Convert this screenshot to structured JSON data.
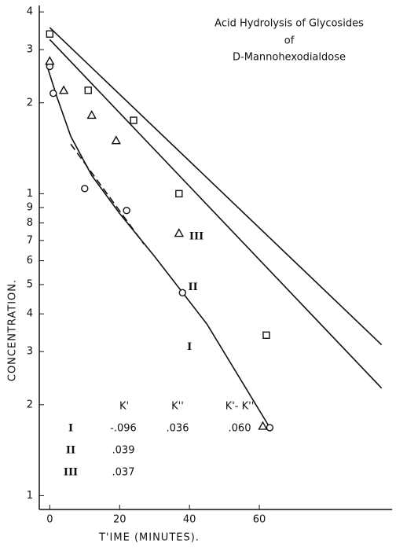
{
  "chart_data": {
    "type": "scatter",
    "title": [
      "Acid Hydrolysis of Glycosides",
      "of",
      "D-Mannohexodialdose"
    ],
    "ylabel": "CONCENTRATION.",
    "xlabel": "T'IME (MINUTES).",
    "log_y": true,
    "color": "#111111",
    "xlim": [
      -3,
      98
    ],
    "ylim": [
      0.09,
      4.2
    ],
    "xticks": [
      0,
      20,
      40,
      60
    ],
    "yticks": [
      4,
      3,
      2,
      1,
      {
        "value": 0.9,
        "label": "9"
      },
      {
        "value": 0.8,
        "label": "8"
      },
      {
        "value": 0.7,
        "label": "7"
      },
      {
        "value": 0.6,
        "label": "6"
      },
      {
        "value": 0.5,
        "label": "5"
      },
      {
        "value": 0.4,
        "label": "4"
      },
      {
        "value": 0.3,
        "label": "3"
      },
      {
        "value": 0.2,
        "label": "2"
      },
      {
        "value": 0.1,
        "label": "1"
      }
    ],
    "series": [
      {
        "name": "I",
        "marker": "circle",
        "x": [
          0,
          1,
          10,
          22,
          38,
          63
        ],
        "values": [
          2.64,
          2.15,
          1.04,
          0.88,
          0.47,
          0.168
        ]
      },
      {
        "name": "II",
        "marker": "triangle",
        "x": [
          0,
          4,
          12,
          19,
          37,
          61
        ],
        "values": [
          2.75,
          2.2,
          1.82,
          1.5,
          0.74,
          0.17
        ]
      },
      {
        "name": "III",
        "marker": "square",
        "x": [
          0,
          11,
          24,
          37,
          62
        ],
        "values": [
          3.38,
          2.2,
          1.75,
          1.0,
          0.34
        ]
      }
    ],
    "lines": [
      {
        "style": "solid",
        "x": [
          0,
          95
        ],
        "values": [
          3.55,
          0.316
        ]
      },
      {
        "style": "solid",
        "x": [
          0,
          95
        ],
        "values": [
          3.24,
          0.227
        ]
      },
      {
        "style": "solid",
        "x": [
          -1,
          2,
          6,
          12,
          20,
          30,
          45,
          63
        ],
        "values": [
          2.7,
          2.1,
          1.55,
          1.15,
          0.86,
          0.62,
          0.37,
          0.168
        ]
      },
      {
        "style": "dashed",
        "x": [
          6,
          27
        ],
        "values": [
          1.46,
          0.68
        ]
      }
    ],
    "series_labels": [
      {
        "text": "III",
        "x": 42,
        "y": 0.72
      },
      {
        "text": "II",
        "x": 41,
        "y": 0.49
      },
      {
        "text": "I",
        "x": 40,
        "y": 0.31
      }
    ],
    "table": {
      "header": [
        "K'",
        "K''",
        "K'- K''"
      ],
      "rows": [
        [
          "I",
          "-.096",
          ".036",
          ".060"
        ],
        [
          "II",
          ".039"
        ],
        [
          "III",
          ".037"
        ]
      ]
    }
  }
}
